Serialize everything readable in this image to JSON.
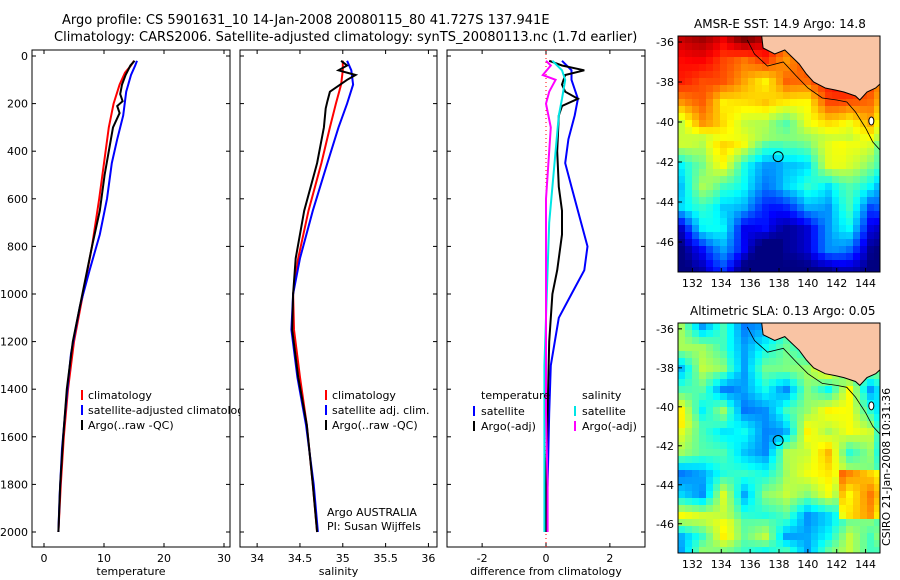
{
  "header": {
    "title_line1": "Argo profile: CS 5901631_10 14-Jan-2008 20080115_80 41.727S 137.941E",
    "title_line2": "Climatology: CARS2006. Satellite-adjusted climatology: synTS_20080113.nc (1.7d earlier)"
  },
  "credit": "CSIRO 21-Jan-2008 10:31:36",
  "colors": {
    "climatology": "#ff0000",
    "satellite": "#0000ff",
    "argo": "#000000",
    "salinity_sat_diff": "#00e5e5",
    "salinity_argo_diff": "#ff00ff"
  },
  "chart_data": [
    {
      "type": "line",
      "xlabel": "temperature",
      "ylim": [
        2000,
        0
      ],
      "xlim": [
        -2,
        31
      ],
      "xticks": [
        0,
        10,
        20,
        30
      ],
      "yticks": [
        0,
        200,
        400,
        600,
        800,
        1000,
        1200,
        1400,
        1600,
        1800,
        2000
      ],
      "legend": [
        "climatology",
        "satellite-adjusted climatology",
        "Argo(..raw -QC)"
      ],
      "series": [
        {
          "name": "climatology",
          "color": "#ff0000",
          "points": [
            [
              15,
              20
            ],
            [
              14.5,
              40
            ],
            [
              13.5,
              70
            ],
            [
              12.6,
              120
            ],
            [
              11.6,
              200
            ],
            [
              10.8,
              300
            ],
            [
              10.0,
              450
            ],
            [
              9.2,
              600
            ],
            [
              8.0,
              800
            ],
            [
              6.5,
              1000
            ],
            [
              5.0,
              1200
            ],
            [
              4.0,
              1400
            ],
            [
              3.3,
              1600
            ],
            [
              2.8,
              1800
            ],
            [
              2.4,
              2000
            ]
          ]
        },
        {
          "name": "satellite-adjusted climatology",
          "color": "#0000ff",
          "points": [
            [
              15.5,
              20
            ],
            [
              15.2,
              40
            ],
            [
              14.5,
              80
            ],
            [
              13.7,
              150
            ],
            [
              13.2,
              250
            ],
            [
              12.2,
              350
            ],
            [
              11.3,
              450
            ],
            [
              10.5,
              600
            ],
            [
              9.3,
              750
            ],
            [
              7.6,
              900
            ],
            [
              6.0,
              1050
            ],
            [
              4.5,
              1250
            ],
            [
              3.7,
              1450
            ],
            [
              3.0,
              1650
            ],
            [
              2.6,
              1850
            ],
            [
              2.4,
              2000
            ]
          ]
        },
        {
          "name": "Argo(..raw -QC)",
          "color": "#000000",
          "points": [
            [
              15.1,
              20
            ],
            [
              14.4,
              40
            ],
            [
              14.0,
              60
            ],
            [
              13.6,
              80
            ],
            [
              13.0,
              120
            ],
            [
              12.7,
              160
            ],
            [
              13.1,
              190
            ],
            [
              12.2,
              210
            ],
            [
              12.6,
              240
            ],
            [
              11.5,
              300
            ],
            [
              10.8,
              400
            ],
            [
              10.1,
              500
            ],
            [
              9.3,
              650
            ],
            [
              8.0,
              800
            ],
            [
              6.4,
              1000
            ],
            [
              4.8,
              1200
            ],
            [
              3.8,
              1400
            ],
            [
              3.2,
              1600
            ],
            [
              2.7,
              1800
            ],
            [
              2.4,
              2000
            ]
          ]
        }
      ]
    },
    {
      "type": "line",
      "xlabel": "salinity",
      "ylim": [
        2000,
        0
      ],
      "xlim": [
        33.8,
        36.1
      ],
      "xticks": [
        34,
        34.5,
        35,
        35.5,
        36
      ],
      "yticks": [
        0,
        200,
        400,
        600,
        800,
        1000,
        1200,
        1400,
        1600,
        1800,
        2000
      ],
      "legend": [
        "climatology",
        "satellite adj. clim.",
        "Argo(..raw -QC)"
      ],
      "annotations": [
        "Argo AUSTRALIA",
        "PI: Susan Wijffels"
      ],
      "series": [
        {
          "name": "climatology",
          "color": "#ff0000",
          "points": [
            [
              35.0,
              20
            ],
            [
              35.0,
              60
            ],
            [
              34.98,
              120
            ],
            [
              34.92,
              200
            ],
            [
              34.85,
              300
            ],
            [
              34.75,
              450
            ],
            [
              34.6,
              650
            ],
            [
              34.48,
              850
            ],
            [
              34.42,
              1000
            ],
            [
              34.43,
              1150
            ],
            [
              34.5,
              1350
            ],
            [
              34.58,
              1550
            ],
            [
              34.65,
              1800
            ],
            [
              34.7,
              2000
            ]
          ]
        },
        {
          "name": "satellite adj. clim.",
          "color": "#0000ff",
          "points": [
            [
              35.05,
              20
            ],
            [
              35.1,
              60
            ],
            [
              35.12,
              120
            ],
            [
              35.05,
              200
            ],
            [
              34.95,
              300
            ],
            [
              34.82,
              450
            ],
            [
              34.65,
              650
            ],
            [
              34.5,
              850
            ],
            [
              34.42,
              1000
            ],
            [
              34.4,
              1150
            ],
            [
              34.47,
              1350
            ],
            [
              34.57,
              1550
            ],
            [
              34.66,
              1800
            ],
            [
              34.71,
              2000
            ]
          ]
        },
        {
          "name": "Argo(..raw -QC)",
          "color": "#000000",
          "points": [
            [
              34.98,
              20
            ],
            [
              35.05,
              40
            ],
            [
              34.95,
              60
            ],
            [
              35.15,
              80
            ],
            [
              35.05,
              100
            ],
            [
              34.85,
              150
            ],
            [
              34.82,
              190
            ],
            [
              34.8,
              220
            ],
            [
              34.78,
              300
            ],
            [
              34.7,
              450
            ],
            [
              34.55,
              650
            ],
            [
              34.45,
              850
            ],
            [
              34.42,
              1000
            ],
            [
              34.41,
              1150
            ],
            [
              34.48,
              1350
            ],
            [
              34.58,
              1550
            ],
            [
              34.65,
              1800
            ],
            [
              34.7,
              2000
            ]
          ]
        }
      ]
    },
    {
      "type": "line",
      "xlabel": "difference from climatology",
      "ylim": [
        2000,
        0
      ],
      "xlim": [
        -3.1,
        3.1
      ],
      "xticks": [
        -2,
        0,
        2
      ],
      "yticks": [
        0,
        200,
        400,
        600,
        800,
        1000,
        1200,
        1400,
        1600,
        1800,
        2000
      ],
      "legend": {
        "temperature": {
          "heading": "temperature",
          "items": [
            "satellite",
            "Argo(-adj)"
          ]
        },
        "salinity": {
          "heading": "salinity",
          "items": [
            "satellite",
            "Argo(-adj)"
          ]
        }
      },
      "series": [
        {
          "name": "temperature satellite",
          "color": "#0000ff",
          "points": [
            [
              0.5,
              20
            ],
            [
              0.8,
              60
            ],
            [
              0.8,
              100
            ],
            [
              1.0,
              180
            ],
            [
              0.9,
              250
            ],
            [
              0.7,
              350
            ],
            [
              0.6,
              450
            ],
            [
              0.8,
              550
            ],
            [
              1.0,
              650
            ],
            [
              1.3,
              800
            ],
            [
              1.2,
              900
            ],
            [
              0.8,
              1000
            ],
            [
              0.4,
              1100
            ],
            [
              0.15,
              1300
            ],
            [
              0.1,
              1500
            ],
            [
              0.05,
              1800
            ],
            [
              0.0,
              2000
            ]
          ]
        },
        {
          "name": "temperature Argo(-adj)",
          "color": "#000000",
          "points": [
            [
              0.1,
              20
            ],
            [
              0.5,
              40
            ],
            [
              1.2,
              60
            ],
            [
              0.6,
              80
            ],
            [
              0.5,
              120
            ],
            [
              0.6,
              150
            ],
            [
              1.0,
              180
            ],
            [
              0.5,
              210
            ],
            [
              0.4,
              250
            ],
            [
              0.35,
              400
            ],
            [
              0.4,
              550
            ],
            [
              0.5,
              650
            ],
            [
              0.5,
              750
            ],
            [
              0.35,
              900
            ],
            [
              0.2,
              1000
            ],
            [
              0.1,
              1200
            ],
            [
              0.05,
              1500
            ],
            [
              0.0,
              1800
            ],
            [
              0.0,
              2000
            ]
          ]
        },
        {
          "name": "salinity satellite",
          "color": "#00e5e5",
          "points": [
            [
              0.2,
              20
            ],
            [
              0.5,
              60
            ],
            [
              0.6,
              100
            ],
            [
              0.5,
              180
            ],
            [
              0.4,
              250
            ],
            [
              0.3,
              400
            ],
            [
              0.2,
              550
            ],
            [
              0.1,
              700
            ],
            [
              0.05,
              900
            ],
            [
              0.0,
              1100
            ],
            [
              -0.05,
              1300
            ],
            [
              -0.05,
              1500
            ],
            [
              -0.05,
              1800
            ],
            [
              -0.05,
              2000
            ]
          ]
        },
        {
          "name": "salinity Argo(-adj)",
          "color": "#ff00ff",
          "points": [
            [
              0.0,
              20
            ],
            [
              0.15,
              40
            ],
            [
              -0.1,
              80
            ],
            [
              0.3,
              100
            ],
            [
              0.1,
              150
            ],
            [
              0.0,
              200
            ],
            [
              0.15,
              300
            ],
            [
              0.1,
              400
            ],
            [
              0.0,
              600
            ],
            [
              0.0,
              800
            ],
            [
              0.0,
              1000
            ],
            [
              0.0,
              1200
            ],
            [
              0.0,
              1500
            ],
            [
              0.05,
              1800
            ],
            [
              0.05,
              2000
            ]
          ]
        }
      ]
    },
    {
      "type": "heatmap",
      "title": "AMSR-E SST: 14.9 Argo: 14.8",
      "xlim": [
        131,
        145
      ],
      "ylim": [
        -47.5,
        -35.7
      ],
      "xticks": [
        132,
        134,
        136,
        138,
        140,
        142,
        144
      ],
      "yticks": [
        -36,
        -38,
        -40,
        -42,
        -44,
        -46
      ],
      "marker": {
        "lon": 137.94,
        "lat": -41.73
      }
    },
    {
      "type": "heatmap",
      "title": "Altimetric SLA: 0.13 Argo: 0.05",
      "xlim": [
        131,
        145
      ],
      "ylim": [
        -47.5,
        -35.7
      ],
      "xticks": [
        132,
        134,
        136,
        138,
        140,
        142,
        144
      ],
      "yticks": [
        -36,
        -38,
        -40,
        -42,
        -44,
        -46
      ],
      "marker": {
        "lon": 137.94,
        "lat": -41.73
      }
    }
  ]
}
